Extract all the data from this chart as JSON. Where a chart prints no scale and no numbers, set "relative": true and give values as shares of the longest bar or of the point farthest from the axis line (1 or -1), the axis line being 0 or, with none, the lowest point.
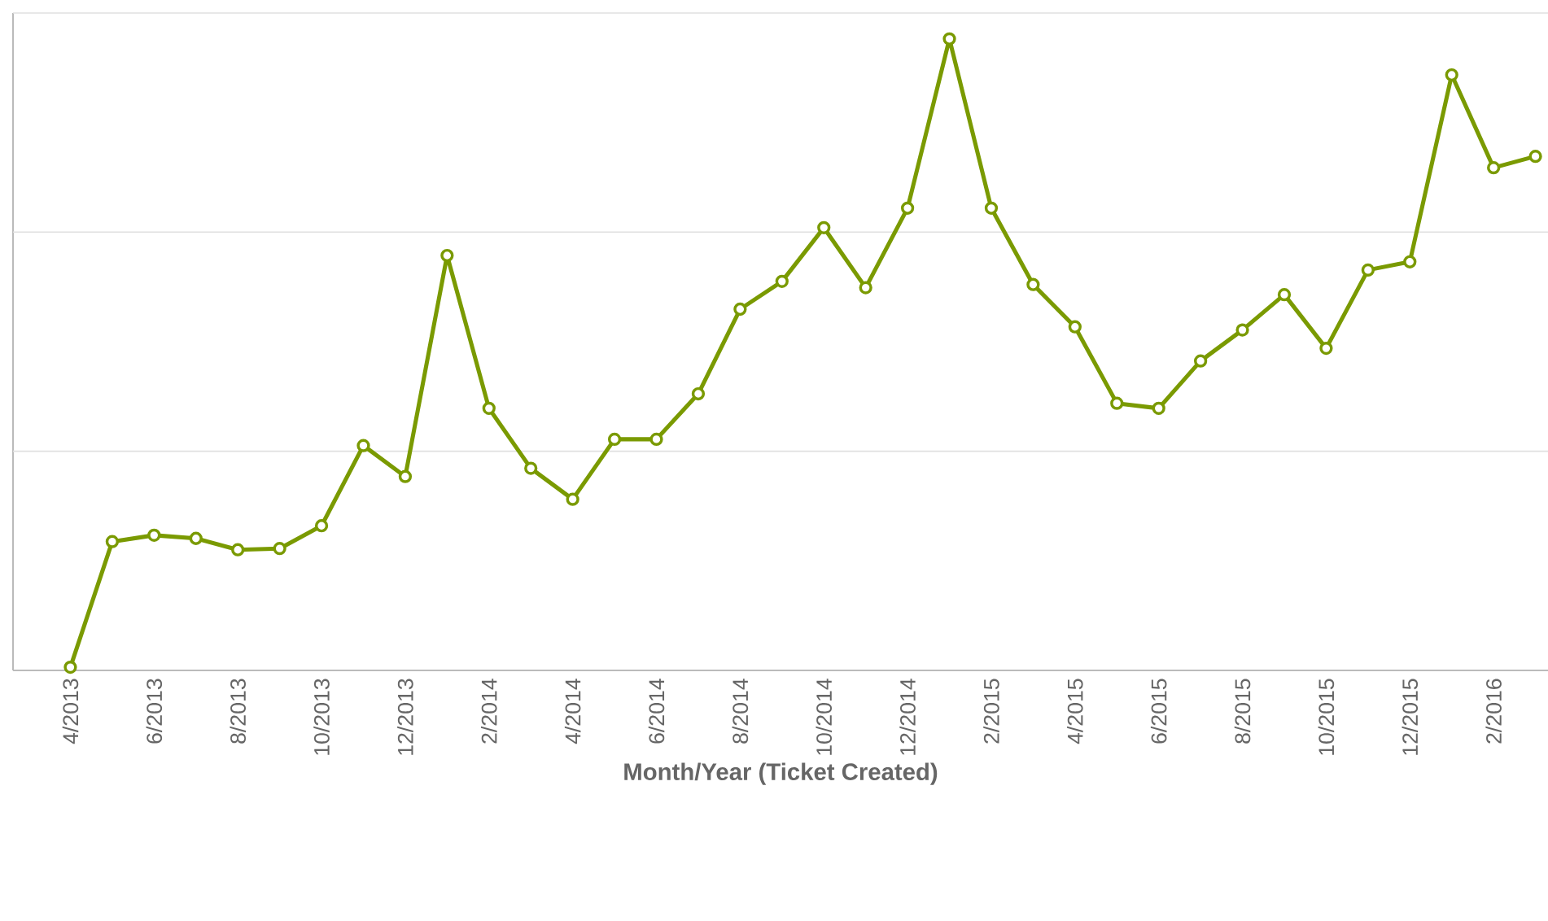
{
  "chart_data": {
    "type": "line",
    "xlabel": "Month/Year (Ticket Created)",
    "relative": true,
    "marker": "circle",
    "ref_lines": [
      {
        "axis": "y",
        "value": 0.347,
        "color": "#e0e0e0"
      },
      {
        "axis": "y",
        "value": 0.694,
        "color": "#e0e0e0"
      }
    ],
    "categories": [
      "4/2013",
      null,
      "6/2013",
      null,
      "8/2013",
      null,
      "10/2013",
      null,
      "12/2013",
      null,
      "2/2014",
      null,
      "4/2014",
      null,
      "6/2014",
      null,
      "8/2014",
      null,
      "10/2014",
      null,
      "12/2014",
      null,
      "2/2015",
      null,
      "4/2015",
      null,
      "6/2015",
      null,
      "8/2015",
      null,
      "10/2015",
      null,
      "12/2015",
      null,
      "2/2016",
      null
    ],
    "series": [
      {
        "color": "#7a9a01",
        "values": [
          0.005,
          0.204,
          0.214,
          0.209,
          0.191,
          0.193,
          0.229,
          0.356,
          0.307,
          0.657,
          0.415,
          0.32,
          0.271,
          0.366,
          0.366,
          0.438,
          0.572,
          0.616,
          0.701,
          0.606,
          0.732,
          1,
          0.732,
          0.611,
          0.544,
          0.423,
          0.415,
          0.49,
          0.539,
          0.595,
          0.51,
          0.634,
          0.647,
          0.943,
          0.796,
          0.814
        ]
      }
    ]
  }
}
